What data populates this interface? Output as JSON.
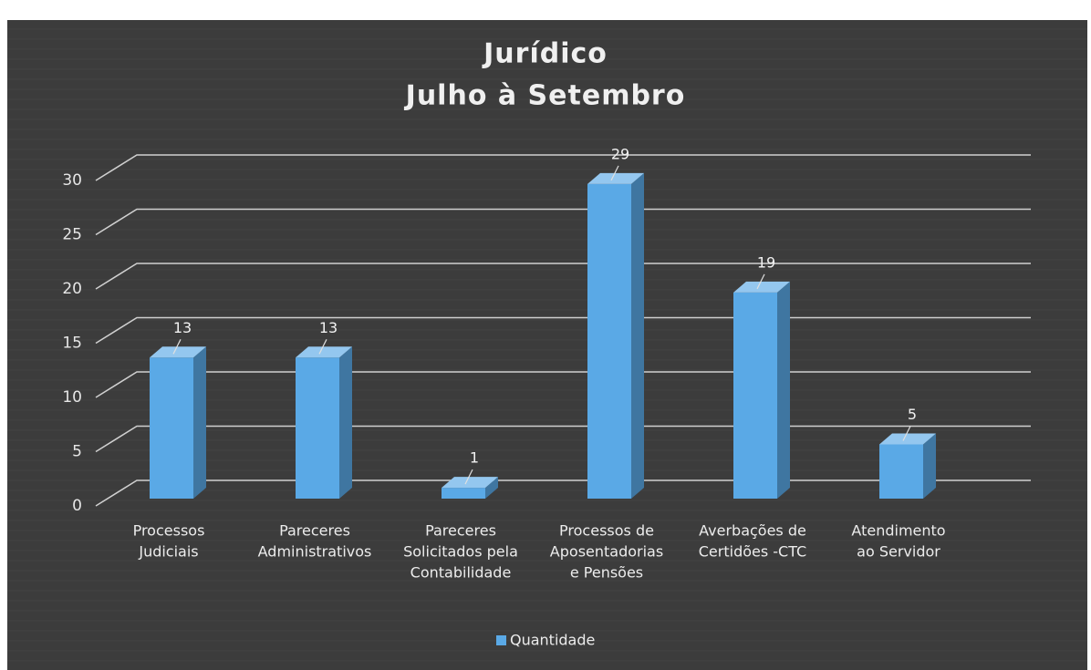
{
  "chart_data": {
    "type": "bar3d",
    "title": "Jurídico",
    "subtitle": "Julho à Setembro",
    "categories": [
      [
        "Processos",
        "Judiciais"
      ],
      [
        "Pareceres",
        "Administrativos"
      ],
      [
        "Pareceres",
        "Solicitados pela",
        "Contabilidade"
      ],
      [
        "Processos de",
        "Aposentadorias",
        "e Pensões"
      ],
      [
        "Averbações de",
        "Certidões -CTC"
      ],
      [
        "Atendimento",
        "ao Servidor"
      ]
    ],
    "series": [
      {
        "name": "Quantidade",
        "color": "#5aa9e6",
        "values": [
          13,
          13,
          1,
          29,
          19,
          5
        ]
      }
    ],
    "ylim": [
      0,
      30
    ],
    "yticks": [
      0,
      5,
      10,
      15,
      20,
      25,
      30
    ],
    "grid": true,
    "legend": "bottom"
  }
}
